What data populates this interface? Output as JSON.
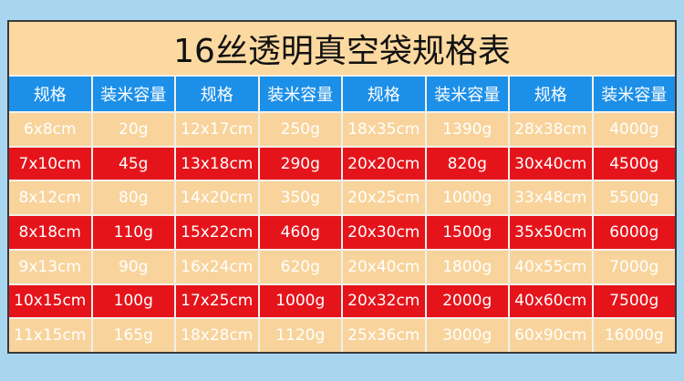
{
  "table": {
    "title": "16丝透明真空袋规格表",
    "headers": [
      "规格",
      "装米容量",
      "规格",
      "装米容量",
      "规格",
      "装米容量",
      "规格",
      "装米容量"
    ],
    "rows": [
      [
        "6x8cm",
        "20g",
        "12x17cm",
        "250g",
        "18x35cm",
        "1390g",
        "28x38cm",
        "4000g"
      ],
      [
        "7x10cm",
        "45g",
        "13x18cm",
        "290g",
        "20x20cm",
        "820g",
        "30x40cm",
        "4500g"
      ],
      [
        "8x12cm",
        "80g",
        "14x20cm",
        "350g",
        "20x25cm",
        "1000g",
        "33x48cm",
        "5500g"
      ],
      [
        "8x18cm",
        "110g",
        "15x22cm",
        "460g",
        "20x30cm",
        "1500g",
        "35x50cm",
        "6000g"
      ],
      [
        "9x13cm",
        "90g",
        "16x24cm",
        "620g",
        "20x40cm",
        "1800g",
        "40x55cm",
        "7000g"
      ],
      [
        "10x15cm",
        "100g",
        "17x25cm",
        "1000g",
        "20x32cm",
        "2000g",
        "40x60cm",
        "7500g"
      ],
      [
        "11x15cm",
        "165g",
        "18x28cm",
        "1120g",
        "25x36cm",
        "3000g",
        "60x90cm",
        "16000g"
      ]
    ]
  }
}
